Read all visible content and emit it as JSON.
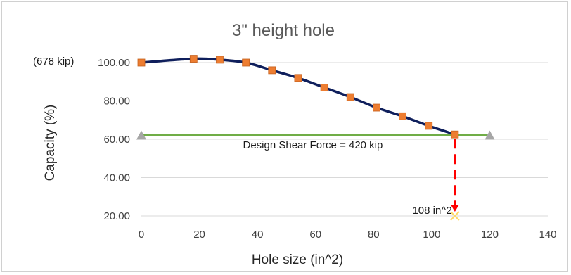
{
  "chart_data": {
    "type": "line",
    "title": "3\" height hole",
    "xlabel": "Hole size (in^2)",
    "ylabel": "Capacity (%)",
    "xlim": [
      0,
      140
    ],
    "ylim": [
      20,
      100
    ],
    "x_ticks": [
      0,
      20,
      40,
      60,
      80,
      100,
      120,
      140
    ],
    "y_ticks": [
      20,
      40,
      60,
      80,
      100
    ],
    "y_tick_labels": [
      "20.00",
      "40.00",
      "60.00",
      "80.00",
      "100.00"
    ],
    "grid": "horizontal",
    "series": [
      {
        "color": "#0f1f5c",
        "marker_color": "#ed7d31",
        "x": [
          0,
          18,
          27,
          36,
          45,
          54,
          63,
          72,
          81,
          90,
          99,
          108
        ],
        "y": [
          100,
          102,
          101.5,
          100,
          96,
          92,
          87,
          82,
          76.5,
          72,
          67,
          62.5
        ]
      },
      {
        "color": "#70ad47",
        "marker_color": "#a6a6a6",
        "x": [
          0,
          120
        ],
        "y": [
          62,
          62
        ]
      }
    ],
    "annotations": [
      {
        "text": "(678 kip)",
        "anchor_y": 100
      },
      {
        "text": "Design Shear Force = 420 kip",
        "x": 35,
        "y": 57
      },
      {
        "text": "108 in^2",
        "x": 97,
        "y": 23
      }
    ],
    "drop_line": {
      "x": 108,
      "y_from": 62.5,
      "y_to": 20,
      "color": "#ff0000"
    },
    "drop_marker": {
      "x": 108,
      "y": 20,
      "color": "#ffd966"
    }
  }
}
